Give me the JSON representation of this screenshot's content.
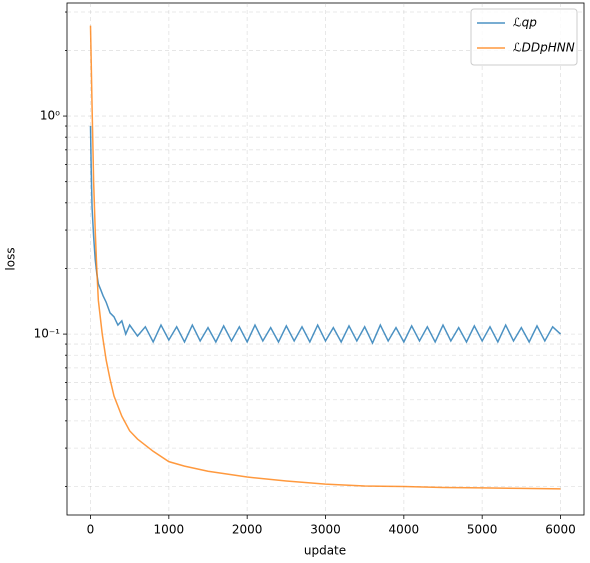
{
  "chart_data": {
    "type": "line",
    "xlabel": "update",
    "ylabel": "loss",
    "yscale": "log",
    "grid": true,
    "legend": "upper right",
    "alpha": 0.8,
    "xlim": [
      -300,
      6300
    ],
    "xticks": [
      0,
      1000,
      2000,
      3000,
      4000,
      5000,
      6000
    ],
    "ylim": [
      0.0148,
      3.3
    ],
    "yticks": [
      {
        "value": 0.1,
        "label": "10⁻¹"
      },
      {
        "value": 1,
        "label": "10⁰"
      }
    ],
    "y_minor_ticks": [
      0.02,
      0.03,
      0.04,
      0.05,
      0.06,
      0.07,
      0.08,
      0.09,
      0.2,
      0.3,
      0.4,
      0.5,
      0.6,
      0.7,
      0.8,
      0.9,
      2,
      3
    ],
    "series": [
      {
        "name": "ℒqp",
        "color": "#1f77b4",
        "x": [
          0,
          10,
          20,
          40,
          60,
          80,
          100,
          130,
          160,
          200,
          250,
          300,
          350,
          400,
          450,
          500,
          600,
          700,
          800,
          900,
          1000,
          1100,
          1200,
          1300,
          1400,
          1500,
          1600,
          1700,
          1800,
          1900,
          2000,
          2100,
          2200,
          2300,
          2400,
          2500,
          2600,
          2700,
          2800,
          2900,
          3000,
          3100,
          3200,
          3300,
          3400,
          3500,
          3600,
          3700,
          3800,
          3900,
          4000,
          4100,
          4200,
          4300,
          4400,
          4500,
          4600,
          4700,
          4800,
          4900,
          5000,
          5100,
          5200,
          5300,
          5400,
          5500,
          5600,
          5700,
          5800,
          5900,
          6000
        ],
        "values": [
          0.9,
          0.55,
          0.38,
          0.28,
          0.22,
          0.19,
          0.17,
          0.16,
          0.15,
          0.14,
          0.125,
          0.12,
          0.11,
          0.115,
          0.1,
          0.11,
          0.098,
          0.108,
          0.092,
          0.11,
          0.094,
          0.108,
          0.092,
          0.11,
          0.093,
          0.107,
          0.092,
          0.109,
          0.093,
          0.108,
          0.092,
          0.11,
          0.093,
          0.107,
          0.092,
          0.109,
          0.093,
          0.108,
          0.092,
          0.11,
          0.093,
          0.107,
          0.092,
          0.109,
          0.093,
          0.108,
          0.091,
          0.11,
          0.093,
          0.107,
          0.092,
          0.109,
          0.093,
          0.108,
          0.092,
          0.11,
          0.093,
          0.107,
          0.092,
          0.109,
          0.093,
          0.108,
          0.092,
          0.11,
          0.093,
          0.107,
          0.092,
          0.109,
          0.093,
          0.108,
          0.1
        ]
      },
      {
        "name": "ℒDDpHNN",
        "color": "#ff7f0e",
        "x": [
          0,
          10,
          20,
          30,
          40,
          60,
          80,
          100,
          150,
          200,
          250,
          300,
          400,
          500,
          600,
          800,
          1000,
          1200,
          1500,
          2000,
          2500,
          3000,
          3500,
          4000,
          4500,
          5000,
          5500,
          6000
        ],
        "values": [
          2.6,
          1.7,
          1.1,
          0.75,
          0.5,
          0.3,
          0.2,
          0.143,
          0.1,
          0.076,
          0.062,
          0.052,
          0.042,
          0.036,
          0.033,
          0.029,
          0.026,
          0.0248,
          0.0235,
          0.0221,
          0.0212,
          0.0205,
          0.0201,
          0.02,
          0.0198,
          0.0197,
          0.0196,
          0.0195
        ]
      }
    ]
  }
}
